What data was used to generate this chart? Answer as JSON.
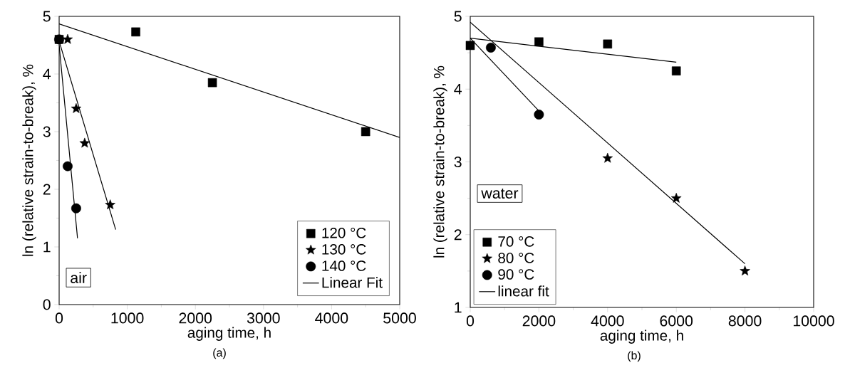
{
  "chart_data": [
    {
      "type": "scatter",
      "xlabel": "aging time, h",
      "ylabel": "ln (relative strain-to-break), %",
      "xlim": [
        0,
        5000
      ],
      "ylim": [
        0,
        5
      ],
      "xticks": [
        0,
        {
          "value": 500,
          "label": null
        },
        1000,
        {
          "value": 1500,
          "label": null
        },
        2000,
        {
          "value": 2500,
          "label": null
        },
        3000,
        {
          "value": 3500,
          "label": null
        },
        4000,
        {
          "value": 4500,
          "label": null
        },
        5000
      ],
      "yticks": [
        0,
        {
          "value": 0.5,
          "label": null
        },
        1,
        {
          "value": 1.5,
          "label": null
        },
        2,
        {
          "value": 2.5,
          "label": null
        },
        3,
        {
          "value": 3.5,
          "label": null
        },
        4,
        {
          "value": 4.5,
          "label": null
        },
        5
      ],
      "legend": "bottom right",
      "grid": false,
      "annotations": [
        "air",
        "(a)"
      ],
      "series": [
        {
          "name": "120 °C",
          "type": "scatter",
          "marker": "square",
          "color": "#000000",
          "x": [
            0,
            1125,
            2250,
            4500
          ],
          "values": [
            4.6,
            4.73,
            3.85,
            3.0
          ]
        },
        {
          "name": "130 °C",
          "type": "scatter",
          "marker": "star",
          "color": "#000000",
          "x": [
            125,
            250,
            375,
            750
          ],
          "values": [
            4.6,
            3.4,
            2.8,
            1.73
          ]
        },
        {
          "name": "140 °C",
          "type": "scatter",
          "marker": "circle",
          "color": "#000000",
          "x": [
            0,
            125,
            250
          ],
          "values": [
            4.6,
            2.4,
            1.67
          ]
        },
        {
          "name": "Linear Fit",
          "type": "line",
          "marker": "none",
          "color": "#000000",
          "x": [
            0,
            5000
          ],
          "values": [
            4.87,
            2.9
          ]
        },
        {
          "type": "line",
          "marker": "none",
          "color": "#000000",
          "x": [
            0,
            830
          ],
          "values": [
            4.57,
            1.3
          ]
        },
        {
          "type": "line",
          "marker": "none",
          "color": "#000000",
          "x": [
            0,
            270
          ],
          "values": [
            4.5,
            1.15
          ]
        }
      ]
    },
    {
      "type": "scatter",
      "xlabel": "aging time, h",
      "ylabel": "ln (relative strain-to-break), %",
      "xlim": [
        0,
        10000
      ],
      "ylim": [
        1,
        5
      ],
      "xticks": [
        0,
        {
          "value": 1000,
          "label": null
        },
        2000,
        {
          "value": 3000,
          "label": null
        },
        4000,
        {
          "value": 5000,
          "label": null
        },
        6000,
        {
          "value": 7000,
          "label": null
        },
        8000,
        {
          "value": 9000,
          "label": null
        },
        10000
      ],
      "yticks": [
        1,
        {
          "value": 1.5,
          "label": null
        },
        2,
        {
          "value": 2.5,
          "label": null
        },
        3,
        {
          "value": 3.5,
          "label": null
        },
        4,
        {
          "value": 4.5,
          "label": null
        },
        5
      ],
      "legend": "bottom left",
      "grid": false,
      "annotations": [
        "water",
        "(b)"
      ],
      "series": [
        {
          "name": "70 °C",
          "type": "scatter",
          "marker": "square",
          "color": "#000000",
          "x": [
            0,
            2000,
            4000,
            6000
          ],
          "values": [
            4.6,
            4.65,
            4.62,
            4.25
          ]
        },
        {
          "name": "80 °C",
          "type": "scatter",
          "marker": "star",
          "color": "#000000",
          "x": [
            4000,
            6000,
            8000
          ],
          "values": [
            3.05,
            2.5,
            1.5
          ]
        },
        {
          "name": "90 °C",
          "type": "scatter",
          "marker": "circle",
          "color": "#000000",
          "x": [
            600,
            2000
          ],
          "values": [
            4.57,
            3.65
          ]
        },
        {
          "name": "linear fit",
          "type": "line",
          "marker": "none",
          "color": "#000000",
          "x": [
            0,
            6000
          ],
          "values": [
            4.7,
            4.37
          ]
        },
        {
          "type": "line",
          "marker": "none",
          "color": "#000000",
          "x": [
            0,
            8000
          ],
          "values": [
            4.92,
            1.6
          ]
        },
        {
          "type": "line",
          "marker": "none",
          "color": "#000000",
          "x": [
            0,
            2000
          ],
          "values": [
            4.7,
            3.7
          ]
        }
      ]
    }
  ]
}
